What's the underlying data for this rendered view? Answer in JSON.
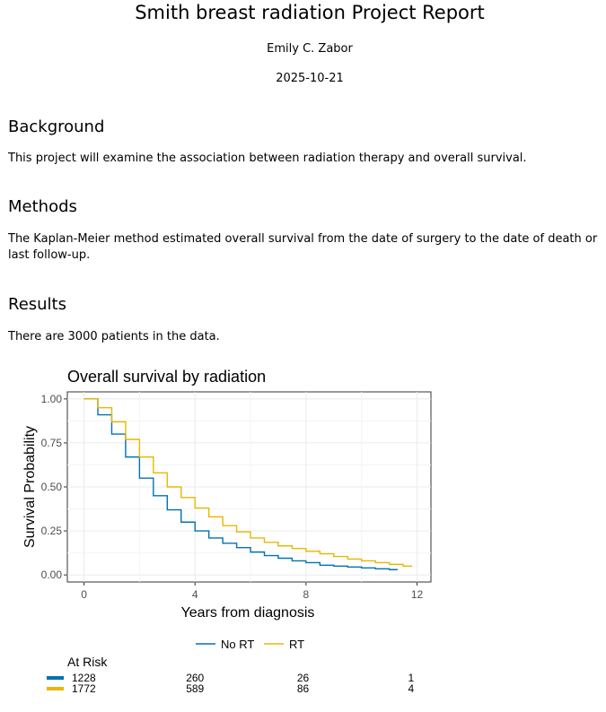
{
  "report": {
    "title": "Smith breast radiation Project Report",
    "author": "Emily C. Zabor",
    "date": "2025-10-21"
  },
  "sections": [
    {
      "heading": "Background",
      "text": "This project will examine the association between radiation therapy and overall survival."
    },
    {
      "heading": "Methods",
      "text": "The Kaplan-Meier method estimated overall survival from the date of surgery to the date of death or last follow-up."
    },
    {
      "heading": "Results",
      "text": "There are 3000 patients in the data."
    }
  ],
  "chart_data": {
    "type": "line",
    "title": "Overall survival by radiation",
    "xlabel": "Years from diagnosis",
    "ylabel": "Survival Probability",
    "xlim": [
      -0.6,
      12.5
    ],
    "ylim": [
      -0.04,
      1.04
    ],
    "x_ticks": [
      0,
      4,
      8,
      12
    ],
    "y_ticks": [
      0.0,
      0.25,
      0.5,
      0.75,
      1.0
    ],
    "y_tick_labels": [
      "0.00",
      "0.25",
      "0.50",
      "0.75",
      "1.00"
    ],
    "grid": true,
    "legend_position": "bottom",
    "series": [
      {
        "name": "No RT",
        "color": "#0072B2",
        "x": [
          0,
          0.5,
          1,
          1.5,
          2,
          2.5,
          3,
          3.5,
          4,
          4.5,
          5,
          5.5,
          6,
          6.5,
          7,
          7.5,
          8,
          8.5,
          9,
          9.5,
          10,
          10.5,
          11,
          11.3
        ],
        "y": [
          1.0,
          0.91,
          0.8,
          0.67,
          0.55,
          0.45,
          0.37,
          0.3,
          0.25,
          0.21,
          0.18,
          0.155,
          0.13,
          0.11,
          0.095,
          0.08,
          0.07,
          0.055,
          0.05,
          0.045,
          0.04,
          0.035,
          0.03,
          0.03
        ]
      },
      {
        "name": "RT",
        "color": "#E7B800",
        "x": [
          0,
          0.5,
          1,
          1.5,
          2,
          2.5,
          3,
          3.5,
          4,
          4.5,
          5,
          5.5,
          6,
          6.5,
          7,
          7.5,
          8,
          8.5,
          9,
          9.5,
          10,
          10.5,
          11,
          11.5,
          11.8
        ],
        "y": [
          1.0,
          0.95,
          0.87,
          0.77,
          0.67,
          0.58,
          0.5,
          0.44,
          0.38,
          0.33,
          0.28,
          0.245,
          0.21,
          0.185,
          0.165,
          0.15,
          0.135,
          0.12,
          0.105,
          0.09,
          0.08,
          0.07,
          0.06,
          0.05,
          0.045
        ]
      }
    ],
    "risk_table": {
      "title": "At Risk",
      "times": [
        0,
        4,
        8,
        12
      ],
      "rows": [
        {
          "color": "#0072B2",
          "values": [
            "1228",
            "260",
            "26",
            "1"
          ]
        },
        {
          "color": "#E7B800",
          "values": [
            "1772",
            "589",
            "86",
            "4"
          ]
        }
      ]
    }
  }
}
